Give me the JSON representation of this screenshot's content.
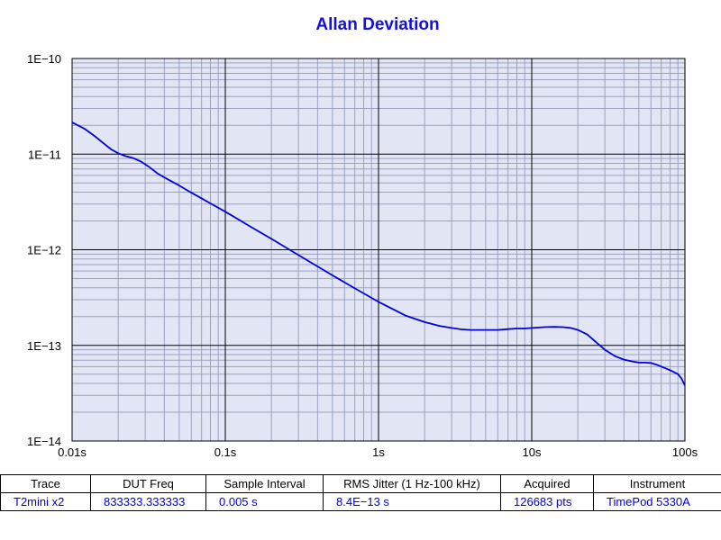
{
  "chart_data": {
    "type": "line",
    "title": "Allan Deviation",
    "x_scale": "log",
    "y_scale": "log",
    "xlim": [
      0.01,
      100
    ],
    "ylim": [
      1e-14,
      1e-10
    ],
    "x_ticks": [
      {
        "value": 0.01,
        "label": "0.01s"
      },
      {
        "value": 0.1,
        "label": "0.1s"
      },
      {
        "value": 1,
        "label": "1s"
      },
      {
        "value": 10,
        "label": "10s"
      },
      {
        "value": 100,
        "label": "100s"
      }
    ],
    "y_ticks": [
      {
        "value": 1e-10,
        "label": "1E−10"
      },
      {
        "value": 1e-11,
        "label": "1E−11"
      },
      {
        "value": 1e-12,
        "label": "1E−12"
      },
      {
        "value": 1e-13,
        "label": "1E−13"
      },
      {
        "value": 1e-14,
        "label": "1E−14"
      }
    ],
    "grid": true,
    "series": [
      {
        "color": "#0000dd",
        "points": [
          [
            0.01,
            2.15e-11
          ],
          [
            0.012,
            1.85e-11
          ],
          [
            0.014,
            1.55e-11
          ],
          [
            0.016,
            1.3e-11
          ],
          [
            0.018,
            1.12e-11
          ],
          [
            0.02,
            1.02e-11
          ],
          [
            0.022,
            9.6e-12
          ],
          [
            0.025,
            9.1e-12
          ],
          [
            0.028,
            8.4e-12
          ],
          [
            0.032,
            7.3e-12
          ],
          [
            0.036,
            6.3e-12
          ],
          [
            0.04,
            5.7e-12
          ],
          [
            0.05,
            4.7e-12
          ],
          [
            0.06,
            3.95e-12
          ],
          [
            0.07,
            3.45e-12
          ],
          [
            0.08,
            3.05e-12
          ],
          [
            0.1,
            2.5e-12
          ],
          [
            0.15,
            1.7e-12
          ],
          [
            0.2,
            1.3e-12
          ],
          [
            0.3,
            8.8e-13
          ],
          [
            0.5,
            5.4e-13
          ],
          [
            0.7,
            3.95e-13
          ],
          [
            1,
            2.85e-13
          ],
          [
            1.5,
            2.05e-13
          ],
          [
            2,
            1.75e-13
          ],
          [
            2.5,
            1.6e-13
          ],
          [
            3,
            1.52e-13
          ],
          [
            3.5,
            1.47e-13
          ],
          [
            4,
            1.45e-13
          ],
          [
            5,
            1.45e-13
          ],
          [
            6,
            1.45e-13
          ],
          [
            7,
            1.48e-13
          ],
          [
            8,
            1.5e-13
          ],
          [
            9,
            1.5e-13
          ],
          [
            10,
            1.52e-13
          ],
          [
            12,
            1.55e-13
          ],
          [
            14,
            1.56e-13
          ],
          [
            16,
            1.55e-13
          ],
          [
            18,
            1.52e-13
          ],
          [
            20,
            1.45e-13
          ],
          [
            23,
            1.3e-13
          ],
          [
            26,
            1.1e-13
          ],
          [
            30,
            9e-14
          ],
          [
            35,
            7.7e-14
          ],
          [
            40,
            7.1e-14
          ],
          [
            45,
            6.8e-14
          ],
          [
            50,
            6.6e-14
          ],
          [
            55,
            6.6e-14
          ],
          [
            60,
            6.55e-14
          ],
          [
            65,
            6.3e-14
          ],
          [
            70,
            6e-14
          ],
          [
            80,
            5.5e-14
          ],
          [
            90,
            5e-14
          ],
          [
            95,
            4.5e-14
          ],
          [
            100,
            3.8e-14
          ]
        ]
      }
    ]
  },
  "table": {
    "headers": [
      "Trace",
      "DUT Freq",
      "Sample Interval",
      "RMS Jitter (1 Hz-100 kHz)",
      "Acquired",
      "Instrument"
    ],
    "values": [
      "T2mini x2",
      "833333.333333",
      "0.005 s",
      "8.4E−13 s",
      "126683 pts",
      "TimePod 5330A"
    ]
  },
  "colors": {
    "plot_background": "#e2e6f4",
    "line": "#0000dd",
    "title": "#1010e0",
    "grid_major": "#000000",
    "grid_minor": "#9aa2c0"
  }
}
